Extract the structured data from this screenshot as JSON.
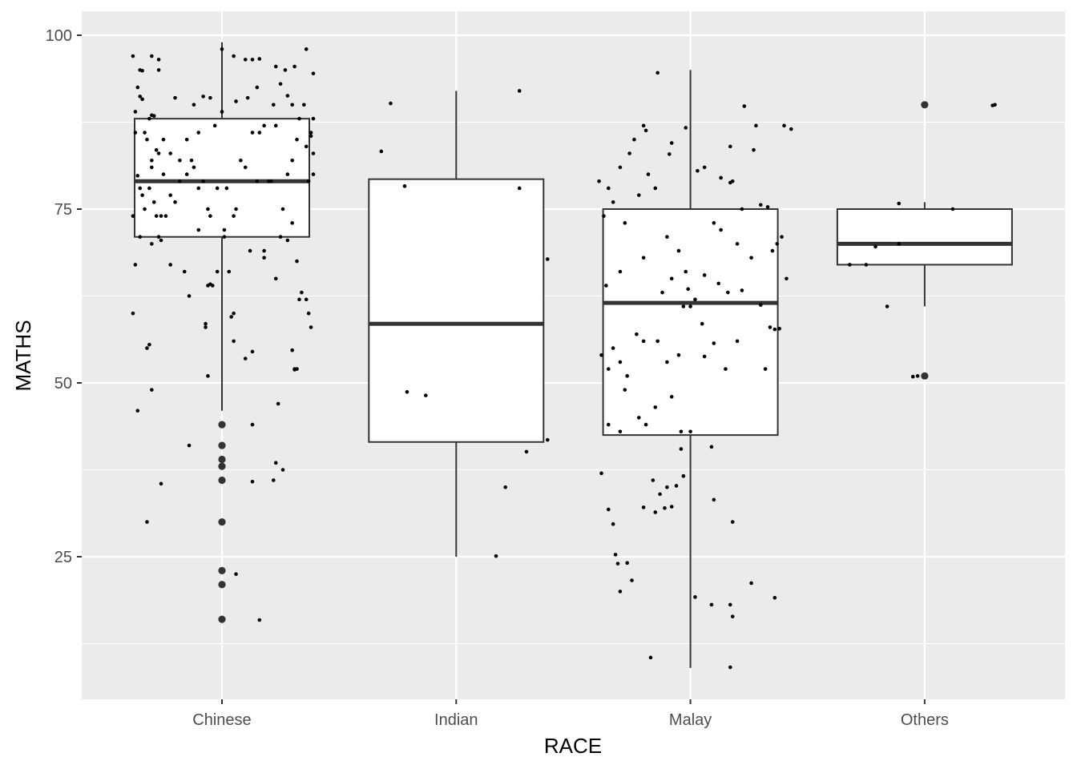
{
  "chart_data": {
    "type": "boxplot",
    "xlabel": "RACE",
    "ylabel": "MATHS",
    "categories": [
      "Chinese",
      "Indian",
      "Malay",
      "Others"
    ],
    "y_ticks": [
      25,
      50,
      75,
      100
    ],
    "ylim": [
      5,
      103.5
    ],
    "grid": true,
    "colors": {
      "panel": "#ebebeb",
      "grid": "#ffffff",
      "box_fill": "#ffffff",
      "box_line": "#333333",
      "point": "#000000",
      "outlier": "#333333"
    },
    "boxes": [
      {
        "category": "Chinese",
        "q1": 71,
        "median": 79,
        "q3": 88,
        "whisker_low": 46,
        "whisker_high": 99,
        "outliers": [
          44,
          41,
          39,
          38,
          36,
          30,
          23,
          21,
          16
        ]
      },
      {
        "category": "Indian",
        "q1": 41.5,
        "median": 58.5,
        "q3": 79.3,
        "whisker_low": 25,
        "whisker_high": 92,
        "outliers": []
      },
      {
        "category": "Malay",
        "q1": 42.5,
        "median": 61.5,
        "q3": 75,
        "whisker_low": 9,
        "whisker_high": 95,
        "outliers": []
      },
      {
        "category": "Others",
        "q1": 67,
        "median": 70,
        "q3": 75,
        "whisker_low": 61,
        "whisker_high": 76,
        "outliers": [
          90,
          51
        ]
      }
    ],
    "jitter_points": [
      {
        "category": "Chinese",
        "points": [
          [
            -0.38,
            97
          ],
          [
            -0.36,
            92.5
          ],
          [
            -0.35,
            91.2
          ],
          [
            -0.34,
            90.8
          ],
          [
            -0.3,
            97
          ],
          [
            -0.27,
            96.5
          ],
          [
            -0.27,
            95
          ],
          [
            -0.34,
            94.9
          ],
          [
            -0.33,
            86
          ],
          [
            -0.32,
            85
          ],
          [
            -0.31,
            88
          ],
          [
            -0.37,
            89
          ],
          [
            -0.37,
            86
          ],
          [
            -0.3,
            88.5
          ],
          [
            -0.29,
            88.4
          ],
          [
            -0.28,
            83.5
          ],
          [
            -0.27,
            83
          ],
          [
            -0.25,
            80
          ],
          [
            -0.36,
            79.8
          ],
          [
            -0.35,
            78
          ],
          [
            -0.34,
            77
          ],
          [
            -0.33,
            75
          ],
          [
            -0.31,
            78
          ],
          [
            -0.3,
            81
          ],
          [
            -0.29,
            76
          ],
          [
            -0.28,
            74
          ],
          [
            -0.26,
            74
          ],
          [
            -0.24,
            74
          ],
          [
            -0.22,
            77
          ],
          [
            -0.2,
            76
          ],
          [
            -0.18,
            79
          ],
          [
            -0.15,
            80
          ],
          [
            -0.13,
            82
          ],
          [
            -0.12,
            81
          ],
          [
            -0.1,
            78
          ],
          [
            -0.08,
            79
          ],
          [
            -0.06,
            75
          ],
          [
            -0.05,
            74
          ],
          [
            -0.02,
            78
          ],
          [
            0.01,
            72
          ],
          [
            0.02,
            78
          ],
          [
            0.05,
            74
          ],
          [
            0.06,
            75
          ],
          [
            0.08,
            82
          ],
          [
            0.1,
            81
          ],
          [
            0.13,
            86
          ],
          [
            0.15,
            79
          ],
          [
            0.16,
            86
          ],
          [
            0.2,
            79
          ],
          [
            0.21,
            79
          ],
          [
            0.23,
            87
          ],
          [
            0.26,
            75
          ],
          [
            0.28,
            80
          ],
          [
            0.3,
            82
          ],
          [
            0.32,
            85
          ],
          [
            0.33,
            88
          ],
          [
            0.36,
            84
          ],
          [
            0.37,
            79
          ],
          [
            0.38,
            86
          ],
          [
            0.39,
            88
          ],
          [
            -0.38,
            74
          ],
          [
            -0.37,
            67
          ],
          [
            -0.35,
            71
          ],
          [
            -0.3,
            70
          ],
          [
            -0.27,
            71
          ],
          [
            -0.26,
            70.5
          ],
          [
            -0.22,
            67
          ],
          [
            -0.16,
            66
          ],
          [
            -0.14,
            62.5
          ],
          [
            -0.1,
            72
          ],
          [
            -0.06,
            64
          ],
          [
            -0.05,
            64.2
          ],
          [
            -0.04,
            64
          ],
          [
            -0.02,
            66
          ],
          [
            0.01,
            71
          ],
          [
            0.03,
            66
          ],
          [
            0.12,
            69
          ],
          [
            0.18,
            68
          ],
          [
            0.18,
            69
          ],
          [
            0.23,
            65
          ],
          [
            0.25,
            71
          ],
          [
            0.28,
            70.5
          ],
          [
            0.3,
            73
          ],
          [
            0.33,
            62
          ],
          [
            0.34,
            63
          ],
          [
            0.36,
            62
          ],
          [
            0.37,
            60
          ],
          [
            0.38,
            58
          ],
          [
            0.32,
            67.5
          ],
          [
            -0.38,
            60
          ],
          [
            -0.36,
            46
          ],
          [
            -0.32,
            55
          ],
          [
            -0.31,
            55.5
          ],
          [
            -0.3,
            49
          ],
          [
            -0.26,
            35.5
          ],
          [
            -0.14,
            41
          ],
          [
            -0.07,
            58.5
          ],
          [
            -0.07,
            58
          ],
          [
            -0.06,
            51
          ],
          [
            0.04,
            59.5
          ],
          [
            0.05,
            56
          ],
          [
            0.05,
            60
          ],
          [
            0.1,
            53.5
          ],
          [
            0.13,
            54.5
          ],
          [
            0.22,
            36
          ],
          [
            0.23,
            38.5
          ],
          [
            0.24,
            47
          ],
          [
            0.26,
            37.5
          ],
          [
            0.3,
            54.7
          ],
          [
            0.31,
            52
          ],
          [
            0.31,
            51.9
          ],
          [
            0.32,
            52
          ],
          [
            0.13,
            35.8
          ],
          [
            0.13,
            44
          ],
          [
            0.16,
            15.9
          ],
          [
            0.06,
            22.5
          ],
          [
            -0.32,
            30
          ],
          [
            -0.35,
            95
          ],
          [
            0.0,
            98
          ],
          [
            0.05,
            97
          ],
          [
            0.1,
            96.5
          ],
          [
            0.13,
            96.5
          ],
          [
            0.16,
            96.6
          ],
          [
            0.23,
            95.5
          ],
          [
            0.27,
            95
          ],
          [
            0.31,
            95.5
          ],
          [
            0.36,
            98
          ],
          [
            0.39,
            94.5
          ],
          [
            0.3,
            90
          ],
          [
            0.25,
            93
          ],
          [
            0.15,
            92.5
          ],
          [
            0.11,
            91
          ],
          [
            -0.05,
            91
          ],
          [
            -0.08,
            91.2
          ],
          [
            -0.12,
            90
          ],
          [
            -0.2,
            91
          ],
          [
            0.39,
            83
          ],
          [
            0.39,
            80
          ],
          [
            0.38,
            85.5
          ],
          [
            0.35,
            90
          ],
          [
            0.28,
            91.3
          ],
          [
            0.22,
            90
          ],
          [
            0.18,
            87
          ],
          [
            0.06,
            90.5
          ],
          [
            0.0,
            89
          ],
          [
            -0.03,
            87
          ],
          [
            -0.1,
            86
          ],
          [
            -0.15,
            85
          ],
          [
            -0.18,
            82
          ],
          [
            -0.22,
            83
          ],
          [
            -0.25,
            85
          ],
          [
            -0.3,
            82
          ]
        ]
      },
      {
        "category": "Indian",
        "points": [
          [
            -0.28,
            90.2
          ],
          [
            -0.32,
            83.3
          ],
          [
            -0.22,
            78.3
          ],
          [
            0.27,
            92
          ],
          [
            0.27,
            78
          ],
          [
            0.39,
            67.8
          ],
          [
            -0.21,
            48.7
          ],
          [
            -0.13,
            48.2
          ],
          [
            0.39,
            41.8
          ],
          [
            0.3,
            40.1
          ],
          [
            0.21,
            35
          ],
          [
            0.17,
            25.1
          ]
        ]
      },
      {
        "category": "Malay",
        "points": [
          [
            -0.39,
            79
          ],
          [
            -0.37,
            74
          ],
          [
            -0.35,
            78
          ],
          [
            -0.33,
            76
          ],
          [
            -0.3,
            81
          ],
          [
            -0.28,
            73
          ],
          [
            -0.26,
            83
          ],
          [
            -0.24,
            85
          ],
          [
            -0.22,
            77
          ],
          [
            -0.2,
            87
          ],
          [
            -0.18,
            80
          ],
          [
            -0.15,
            78
          ],
          [
            -0.1,
            71
          ],
          [
            -0.05,
            69
          ],
          [
            -0.03,
            61
          ],
          [
            -0.01,
            63.5
          ],
          [
            0.0,
            61
          ],
          [
            0.02,
            62
          ],
          [
            0.05,
            58.5
          ],
          [
            0.06,
            81
          ],
          [
            0.1,
            73
          ],
          [
            0.13,
            72
          ],
          [
            0.17,
            78.8
          ],
          [
            0.18,
            79
          ],
          [
            0.2,
            70
          ],
          [
            0.22,
            75
          ],
          [
            0.26,
            68
          ],
          [
            0.28,
            87
          ],
          [
            0.3,
            75.6
          ],
          [
            0.33,
            75.3
          ],
          [
            0.35,
            69
          ],
          [
            0.36,
            57.7
          ],
          [
            0.37,
            70
          ],
          [
            0.39,
            71
          ],
          [
            0.41,
            65
          ],
          [
            0.38,
            57.8
          ],
          [
            0.34,
            58
          ],
          [
            0.32,
            52
          ],
          [
            0.2,
            56
          ],
          [
            0.15,
            52
          ],
          [
            0.1,
            55.7
          ],
          [
            0.06,
            53.8
          ],
          [
            -0.05,
            54
          ],
          [
            -0.1,
            53
          ],
          [
            -0.14,
            56
          ],
          [
            -0.2,
            56
          ],
          [
            -0.23,
            57
          ],
          [
            -0.27,
            51
          ],
          [
            -0.3,
            53
          ],
          [
            -0.33,
            55
          ],
          [
            -0.35,
            52
          ],
          [
            -0.38,
            54
          ],
          [
            -0.36,
            64
          ],
          [
            -0.3,
            66
          ],
          [
            -0.2,
            68
          ],
          [
            -0.12,
            63
          ],
          [
            -0.08,
            65
          ],
          [
            -0.02,
            66
          ],
          [
            0.06,
            65.5
          ],
          [
            0.12,
            64.3
          ],
          [
            0.16,
            63
          ],
          [
            0.22,
            63.3
          ],
          [
            0.3,
            61.2
          ],
          [
            -0.04,
            43
          ],
          [
            0.0,
            43
          ],
          [
            -0.08,
            48
          ],
          [
            -0.15,
            46.5
          ],
          [
            -0.22,
            45
          ],
          [
            -0.3,
            43
          ],
          [
            -0.35,
            44
          ],
          [
            -0.28,
            49
          ],
          [
            -0.19,
            44
          ],
          [
            -0.38,
            37
          ],
          [
            -0.35,
            31.8
          ],
          [
            -0.33,
            29.7
          ],
          [
            -0.32,
            25.3
          ],
          [
            -0.31,
            24
          ],
          [
            -0.3,
            20
          ],
          [
            -0.27,
            24.1
          ],
          [
            -0.25,
            21.6
          ],
          [
            -0.2,
            32.1
          ],
          [
            -0.16,
            36
          ],
          [
            -0.15,
            31.4
          ],
          [
            -0.13,
            34
          ],
          [
            -0.11,
            32
          ],
          [
            -0.1,
            35
          ],
          [
            -0.08,
            32.2
          ],
          [
            -0.06,
            35.2
          ],
          [
            -0.04,
            40.5
          ],
          [
            -0.03,
            36.6
          ],
          [
            0.02,
            19.2
          ],
          [
            0.09,
            40.8
          ],
          [
            0.09,
            18.1
          ],
          [
            0.1,
            33.2
          ],
          [
            0.17,
            18.1
          ],
          [
            0.18,
            30
          ],
          [
            0.18,
            16.4
          ],
          [
            0.17,
            9.1
          ],
          [
            0.26,
            21.2
          ],
          [
            0.36,
            19.1
          ],
          [
            -0.17,
            10.5
          ],
          [
            0.23,
            89.8
          ],
          [
            0.4,
            87
          ],
          [
            0.43,
            86.5
          ],
          [
            -0.14,
            94.6
          ],
          [
            -0.02,
            86.7
          ],
          [
            -0.08,
            84.5
          ],
          [
            0.13,
            79.5
          ],
          [
            0.27,
            83.5
          ],
          [
            -0.19,
            86.3
          ],
          [
            0.03,
            80.5
          ],
          [
            -0.09,
            82.9
          ],
          [
            0.17,
            84
          ]
        ]
      },
      {
        "category": "Others",
        "points": [
          [
            0.3,
            90
          ],
          [
            -0.16,
            61
          ],
          [
            -0.32,
            67
          ],
          [
            -0.25,
            67
          ],
          [
            -0.21,
            69.6
          ],
          [
            -0.11,
            70
          ],
          [
            -0.11,
            75.8
          ],
          [
            0.12,
            75
          ],
          [
            -0.03,
            51
          ],
          [
            -0.05,
            50.9
          ],
          [
            0.29,
            89.9
          ]
        ]
      }
    ]
  }
}
